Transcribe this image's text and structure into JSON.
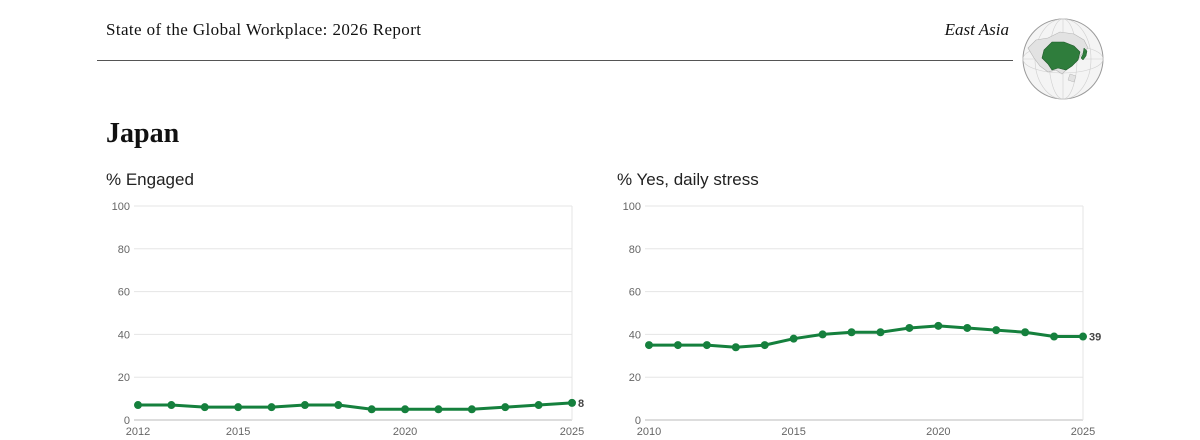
{
  "header": {
    "report_title": "State of the Global Workplace: 2026 Report",
    "region": "East Asia"
  },
  "globe_icon": "globe-east-asia-icon",
  "colors": {
    "series": "#15803d",
    "grid": "#e5e5e5",
    "region_fill": "#2f7d3c"
  },
  "country": "Japan",
  "chart_data": [
    {
      "type": "line",
      "title": "% Engaged",
      "x": [
        2012,
        2013,
        2014,
        2015,
        2016,
        2017,
        2018,
        2019,
        2020,
        2021,
        2022,
        2023,
        2024,
        2025
      ],
      "series": [
        {
          "values": [
            7,
            7,
            6,
            6,
            6,
            7,
            7,
            5,
            5,
            5,
            5,
            6,
            7,
            8
          ]
        }
      ],
      "end_label": "8",
      "ylim": [
        0,
        100
      ],
      "yticks": [
        0,
        20,
        40,
        60,
        80,
        100
      ],
      "xticks": [
        2012,
        2015,
        2020,
        2025
      ],
      "grid": true
    },
    {
      "type": "line",
      "title": "% Yes, daily stress",
      "x": [
        2010,
        2011,
        2012,
        2013,
        2014,
        2015,
        2016,
        2017,
        2018,
        2019,
        2020,
        2021,
        2022,
        2023,
        2024,
        2025
      ],
      "series": [
        {
          "values": [
            35,
            35,
            35,
            34,
            35,
            38,
            40,
            41,
            41,
            43,
            44,
            43,
            42,
            41,
            39,
            39
          ]
        }
      ],
      "end_label": "39",
      "ylim": [
        0,
        100
      ],
      "yticks": [
        0,
        20,
        40,
        60,
        80,
        100
      ],
      "xticks": [
        2010,
        2015,
        2020,
        2025
      ],
      "grid": true
    }
  ]
}
